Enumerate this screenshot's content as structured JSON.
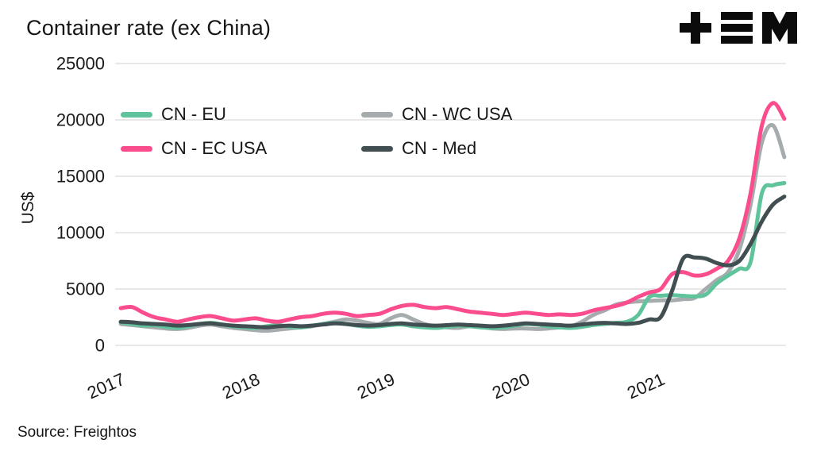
{
  "page": {
    "title": "Container rate (ex China)",
    "source_label": "Source: Freightos",
    "logo_name": "TEM"
  },
  "chart_data": {
    "type": "line",
    "title": "Container rate (ex China)",
    "xlabel": "",
    "ylabel": "US$",
    "ylim": [
      0,
      25000
    ],
    "y_ticks": [
      0,
      5000,
      10000,
      15000,
      20000,
      25000
    ],
    "x_ticks": [
      "2017",
      "2018",
      "2019",
      "2020",
      "2021"
    ],
    "x_range_years": [
      2017,
      2022
    ],
    "cadence": "monthly",
    "first_month": "2017-01",
    "last_month": "2021-12",
    "grid": "horizontal",
    "legend_position": "top-left-inside",
    "source": "Freightos",
    "series": [
      {
        "name": "CN - EU",
        "color": "#5fc39b",
        "values": [
          2050,
          1900,
          1750,
          1800,
          1650,
          1550,
          1700,
          1900,
          2000,
          1850,
          1700,
          1600,
          1550,
          1700,
          1800,
          1650,
          1600,
          1750,
          1900,
          2000,
          1900,
          1750,
          1650,
          1700,
          1800,
          1850,
          1700,
          1600,
          1550,
          1650,
          1750,
          1700,
          1600,
          1550,
          1600,
          1750,
          1900,
          1850,
          1700,
          1600,
          1550,
          1650,
          1800,
          1900,
          2000,
          2100,
          2700,
          4300,
          4400,
          4450,
          4400,
          4350,
          4500,
          5500,
          6200,
          6800,
          7400,
          13500,
          14200,
          14400
        ]
      },
      {
        "name": "CN - EC USA",
        "color": "#fb4d8e",
        "values": [
          3300,
          3400,
          2900,
          2500,
          2300,
          2100,
          2300,
          2500,
          2600,
          2400,
          2200,
          2300,
          2400,
          2200,
          2100,
          2300,
          2500,
          2600,
          2800,
          2900,
          2800,
          2600,
          2700,
          2800,
          3200,
          3500,
          3600,
          3400,
          3300,
          3400,
          3200,
          3000,
          2900,
          2800,
          2700,
          2800,
          2900,
          2800,
          2700,
          2750,
          2700,
          2800,
          3100,
          3300,
          3500,
          3800,
          4300,
          4700,
          5000,
          6300,
          6500,
          6200,
          6300,
          6800,
          7500,
          9500,
          13500,
          19500,
          21500,
          20100
        ]
      },
      {
        "name": "CN - WC USA",
        "color": "#a6abad",
        "values": [
          1900,
          1800,
          1700,
          1600,
          1500,
          1450,
          1550,
          1750,
          1850,
          1700,
          1550,
          1450,
          1350,
          1300,
          1400,
          1500,
          1600,
          1700,
          1900,
          2100,
          2300,
          2200,
          2000,
          1900,
          2400,
          2700,
          2300,
          1900,
          1700,
          1600,
          1550,
          1700,
          1650,
          1500,
          1450,
          1500,
          1500,
          1450,
          1500,
          1600,
          1700,
          2100,
          2700,
          3100,
          3600,
          3800,
          3900,
          3950,
          4000,
          4000,
          4100,
          4200,
          5000,
          5800,
          6500,
          8500,
          12500,
          18000,
          19500,
          16700
        ]
      },
      {
        "name": "CN - Med",
        "color": "#414e52",
        "values": [
          2100,
          2050,
          1950,
          1900,
          1850,
          1750,
          1800,
          1900,
          1950,
          1850,
          1750,
          1700,
          1650,
          1600,
          1700,
          1750,
          1700,
          1750,
          1850,
          1950,
          1900,
          1800,
          1750,
          1800,
          1900,
          1950,
          1850,
          1800,
          1750,
          1800,
          1850,
          1800,
          1750,
          1700,
          1750,
          1850,
          1950,
          1900,
          1850,
          1800,
          1750,
          1850,
          1950,
          2000,
          1950,
          1900,
          2000,
          2300,
          2500,
          4800,
          7700,
          7800,
          7700,
          7300,
          7100,
          7500,
          9000,
          11000,
          12500,
          13200
        ]
      }
    ]
  }
}
